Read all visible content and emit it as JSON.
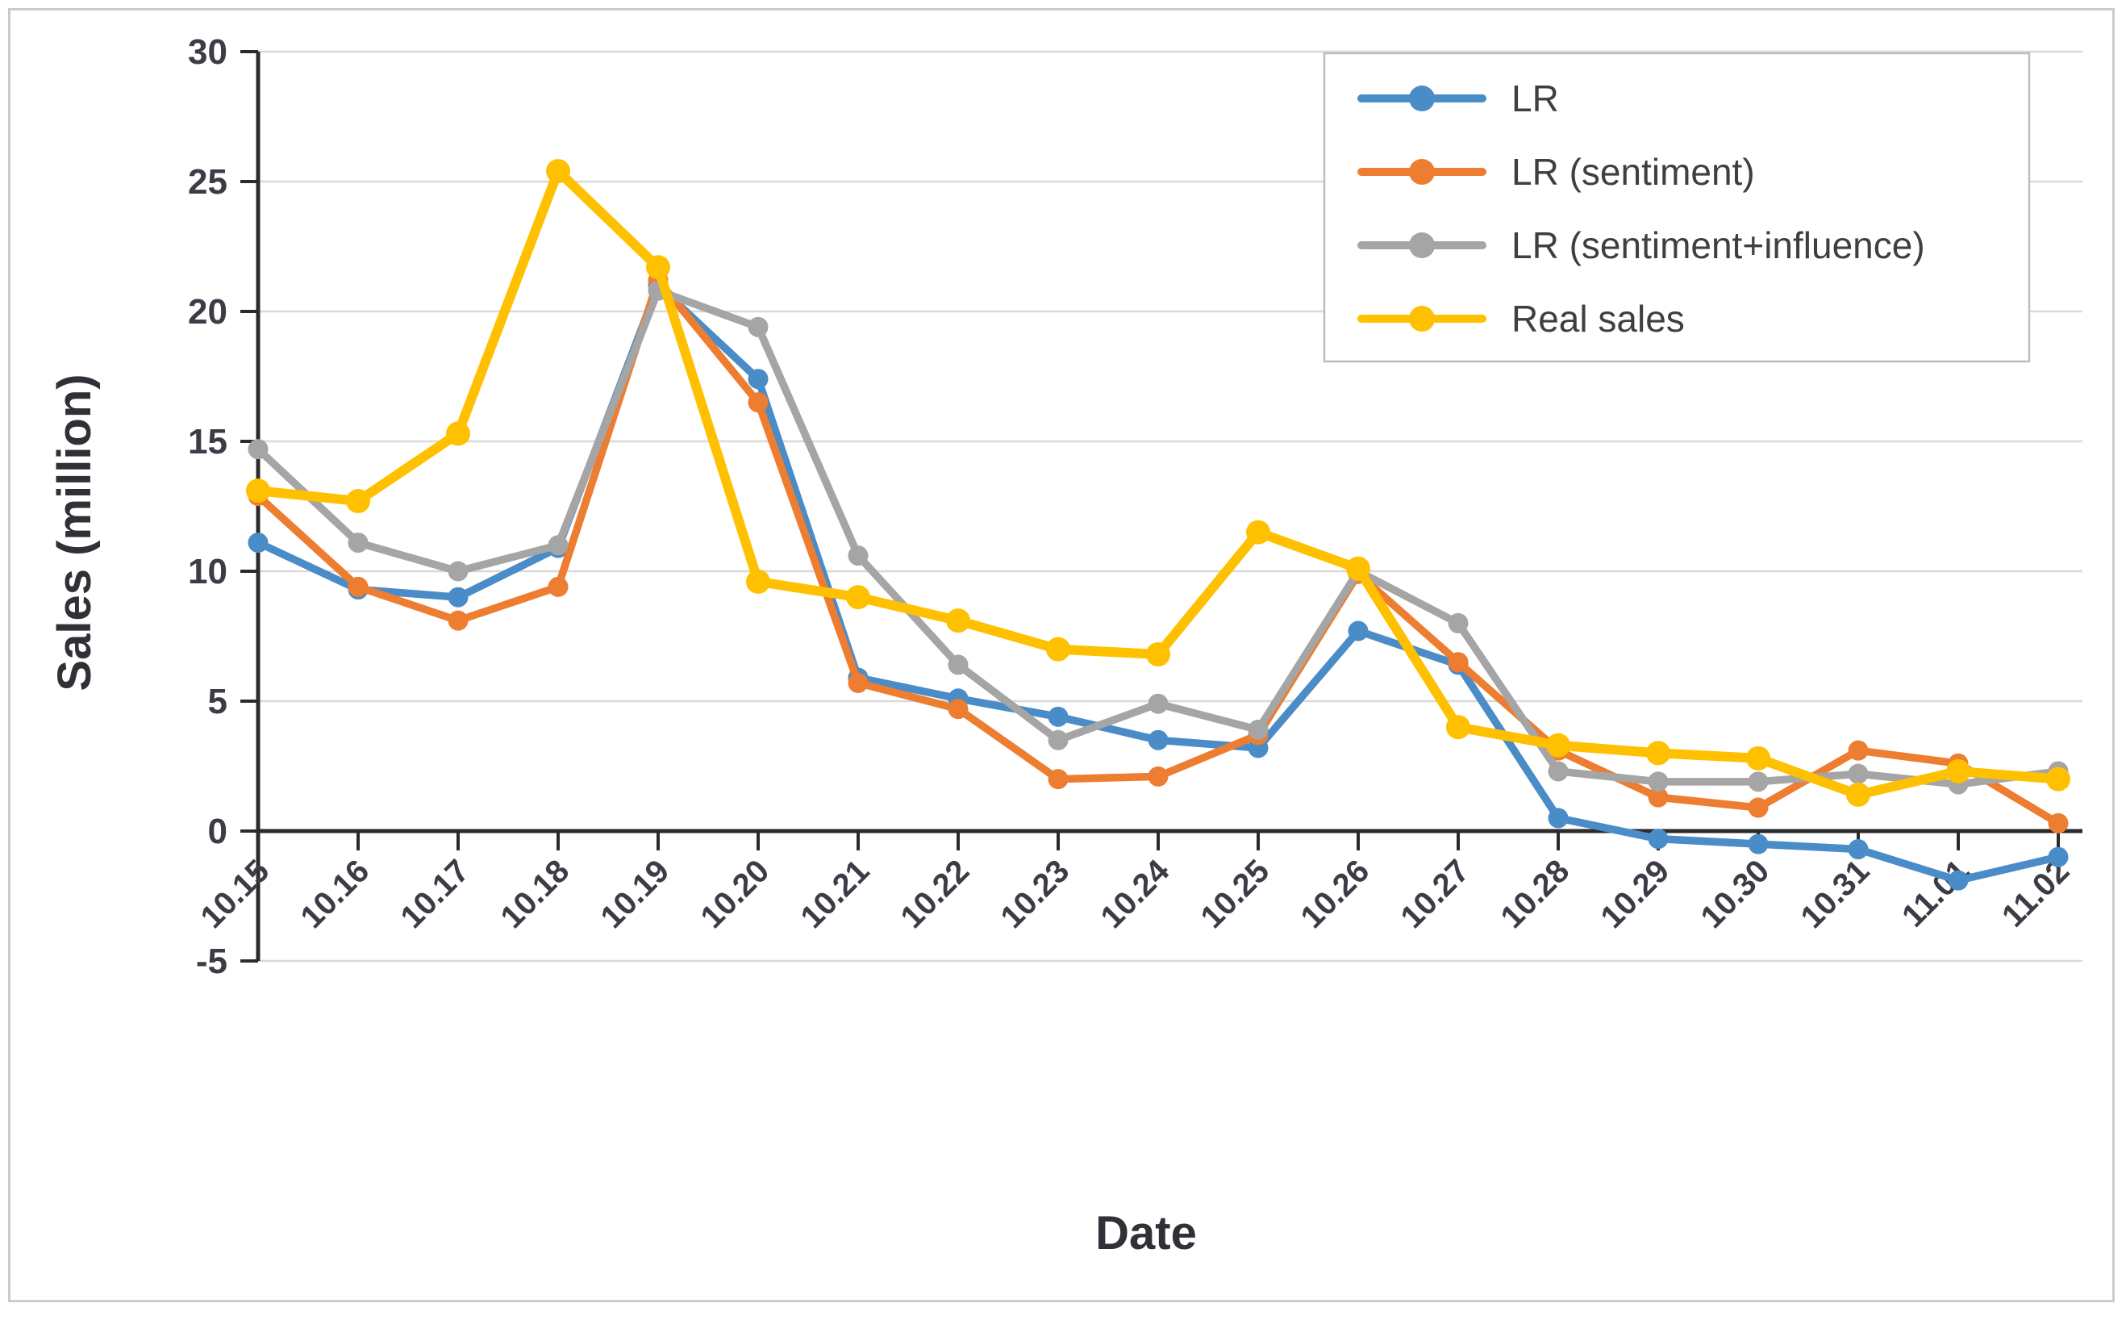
{
  "chart_data": {
    "type": "line",
    "title": "",
    "xlabel": "Date",
    "ylabel": "Sales (million)",
    "x_categories": [
      "10.15",
      "10.16",
      "10.17",
      "10.18",
      "10.19",
      "10.20",
      "10.21",
      "10.22",
      "10.23",
      "10.24",
      "10.25",
      "10.26",
      "10.27",
      "10.28",
      "10.29",
      "10.30",
      "10.31",
      "11.01",
      "11.02"
    ],
    "ylim": [
      -5,
      30
    ],
    "ytick_step": 5,
    "ytick_labels": [
      "-5",
      "0",
      "5",
      "10",
      "15",
      "20",
      "25",
      "30"
    ],
    "grid": true,
    "legend_position": "top-right",
    "series": [
      {
        "name": "LR",
        "color": "#4A8CC7",
        "values": [
          11.1,
          9.3,
          9.0,
          10.9,
          21.0,
          17.4,
          5.9,
          5.1,
          4.4,
          3.5,
          3.2,
          7.7,
          6.4,
          0.5,
          -0.3,
          -0.5,
          -0.7,
          -1.9,
          -1.0
        ]
      },
      {
        "name": "LR (sentiment)",
        "color": "#ED7D31",
        "values": [
          12.9,
          9.4,
          8.1,
          9.4,
          21.2,
          16.5,
          5.7,
          4.7,
          2.0,
          2.1,
          3.7,
          9.9,
          6.5,
          3.1,
          1.3,
          0.9,
          3.1,
          2.6,
          0.3
        ]
      },
      {
        "name": "LR (sentiment+influence)",
        "color": "#A5A5A5",
        "values": [
          14.7,
          11.1,
          10.0,
          11.0,
          20.8,
          19.4,
          10.6,
          6.4,
          3.5,
          4.9,
          3.9,
          10.0,
          8.0,
          2.3,
          1.9,
          1.9,
          2.2,
          1.8,
          2.3
        ]
      },
      {
        "name": "Real sales",
        "color": "#FFC000",
        "values": [
          13.1,
          12.7,
          15.3,
          25.4,
          21.7,
          9.6,
          9.0,
          8.1,
          7.0,
          6.8,
          11.5,
          10.1,
          4.0,
          3.3,
          3.0,
          2.8,
          1.4,
          2.3,
          2.0
        ]
      }
    ]
  },
  "colors": {
    "background": "#ffffff",
    "frame": "#cbcbcb",
    "grid": "#d9d9d9",
    "axis": "#2b2b2b",
    "tick_text": "#3c3c46",
    "axis_title_text": "#303036",
    "legend_text": "#3f3f3f",
    "legend_border": "#bdbdbd"
  }
}
